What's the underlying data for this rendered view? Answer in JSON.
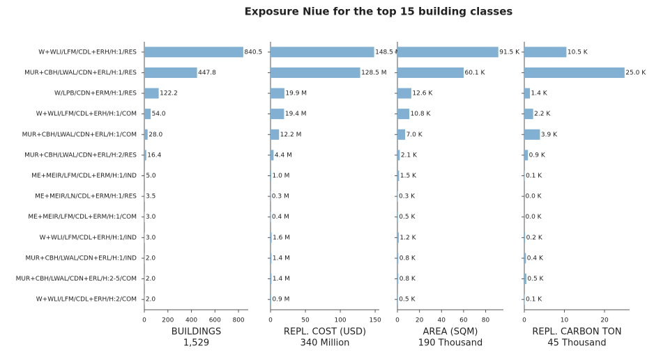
{
  "title": "Exposure Niue for the top 15 building classes",
  "chart_data": [
    {
      "type": "barh",
      "xlabel": "BUILDINGS",
      "total": "1,529",
      "color": "#82b0d3",
      "categories": [
        "W+WLI/LFM/CDL+ERH/H:1/RES",
        "MUR+CBH/LWAL/CDN+ERL/H:1/RES",
        "W/LPB/CDN+ERM/H:1/RES",
        "W+WLI/LFM/CDL+ERH/H:1/COM",
        "MUR+CBH/LWAL/CDN+ERL/H:1/COM",
        "MUR+CBH/LWAL/CDN+ERL/H:2/RES",
        "ME+MEIR/LFM/CDL+ERM/H:1/IND",
        "ME+MEIR/LN/CDL+ERM/H:1/RES",
        "ME+MEIR/LFM/CDL+ERM/H:1/COM",
        "W+WLI/LFM/CDL+ERH/H:1/IND",
        "MUR+CBH/LWAL/CDN+ERL/H:1/IND",
        "MUR+CBH/LWAL/CDN+ERL/H:2-5/COM",
        "W+WLI/LFM/CDL+ERH/H:2/COM"
      ],
      "values": [
        840.5,
        447.8,
        122.2,
        54.0,
        28.0,
        16.4,
        5.0,
        3.5,
        3.0,
        3.0,
        2.0,
        2.0,
        2.0
      ],
      "value_labels": [
        "840.5",
        "447.8",
        "122.2",
        "54.0",
        "28.0",
        "16.4",
        "5.0",
        "3.5",
        "3.0",
        "3.0",
        "2.0",
        "2.0",
        "2.0"
      ],
      "xlim": [
        0,
        882.5
      ],
      "xticks": [
        0,
        200,
        400,
        600,
        800
      ]
    },
    {
      "type": "barh",
      "xlabel": "REPL. COST (USD)",
      "total": "340 Million",
      "color": "#82b0d3",
      "values": [
        148.5,
        128.5,
        19.9,
        19.4,
        12.2,
        4.4,
        1.0,
        0.3,
        0.4,
        1.6,
        1.4,
        1.4,
        0.9
      ],
      "value_labels": [
        "148.5 M",
        "128.5 M",
        "19.9 M",
        "19.4 M",
        "12.2 M",
        "4.4 M",
        "1.0 M",
        "0.3 M",
        "0.4 M",
        "1.6 M",
        "1.4 M",
        "1.4 M",
        "0.9 M"
      ],
      "xlim": [
        0,
        155.9
      ],
      "xticks": [
        0,
        50,
        100,
        150
      ]
    },
    {
      "type": "barh",
      "xlabel": "AREA (SQM)",
      "total": "190 Thousand",
      "color": "#82b0d3",
      "values": [
        91.5,
        60.1,
        12.6,
        10.8,
        7.0,
        2.1,
        1.5,
        0.3,
        0.5,
        1.2,
        0.8,
        0.8,
        0.5
      ],
      "value_labels": [
        "91.5 K",
        "60.1 K",
        "12.6 K",
        "10.8 K",
        "7.0 K",
        "2.1 K",
        "1.5 K",
        "0.3 K",
        "0.5 K",
        "1.2 K",
        "0.8 K",
        "0.8 K",
        "0.5 K"
      ],
      "xlim": [
        0,
        96.1
      ],
      "xticks": [
        0,
        20,
        40,
        60,
        80
      ]
    },
    {
      "type": "barh",
      "xlabel": "REPL. CARBON TON",
      "total": "45 Thousand",
      "color": "#82b0d3",
      "values": [
        10.5,
        25.0,
        1.4,
        2.2,
        3.9,
        0.9,
        0.1,
        0.0,
        0.0,
        0.2,
        0.4,
        0.5,
        0.1
      ],
      "value_labels": [
        "10.5 K",
        "25.0 K",
        "1.4 K",
        "2.2 K",
        "3.9 K",
        "0.9 K",
        "0.1 K",
        "0.0 K",
        "0.0 K",
        "0.2 K",
        "0.4 K",
        "0.5 K",
        "0.1 K"
      ],
      "xlim": [
        0,
        26.25
      ],
      "xticks": [
        0,
        10,
        20
      ]
    }
  ]
}
